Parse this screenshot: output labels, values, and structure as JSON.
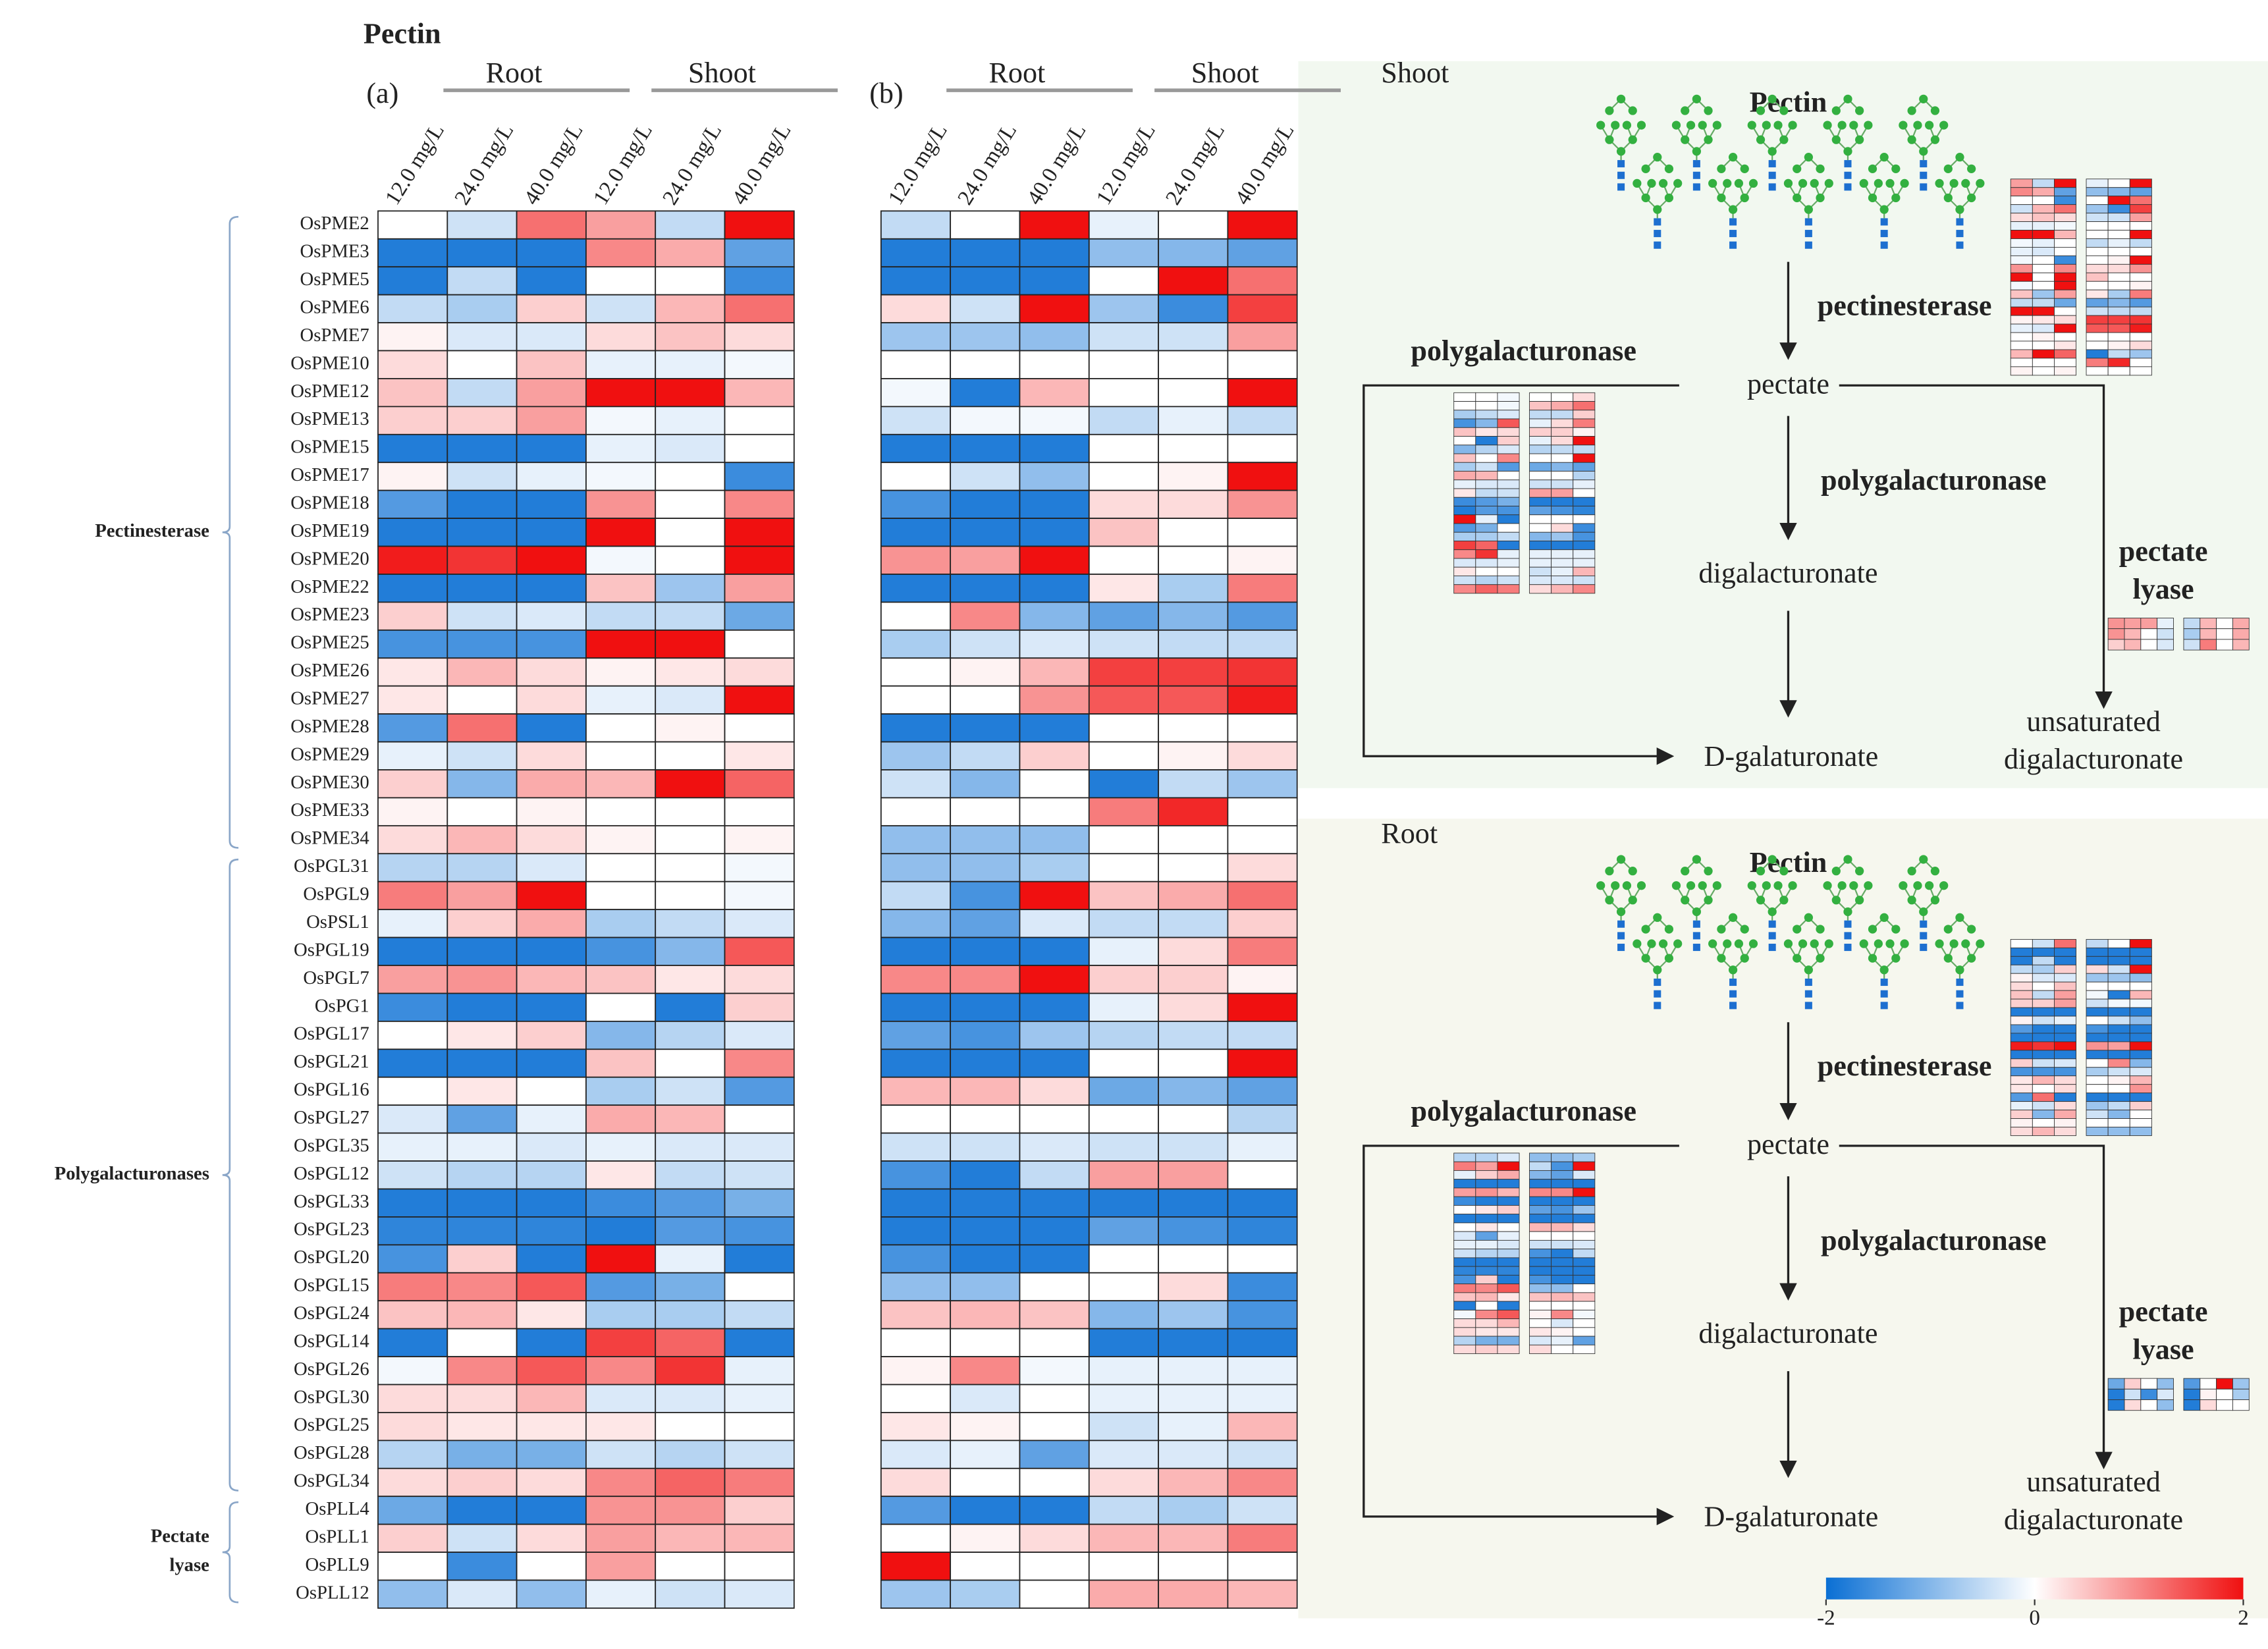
{
  "chart_data": {
    "type": "heatmap",
    "title": "Pectin",
    "column_groups": [
      "Root",
      "Shoot"
    ],
    "columns": [
      "12.0 mg/L",
      "24.0 mg/L",
      "40.0 mg/L",
      "12.0 mg/L",
      "24.0 mg/L",
      "40.0 mg/L"
    ],
    "row_groups": [
      {
        "label": [
          "Pectinesterase"
        ],
        "rows": [
          "OsPME2",
          "OsPME3",
          "OsPME5",
          "OsPME6",
          "OsPME7",
          "OsPME10",
          "OsPME12",
          "OsPME13",
          "OsPME15",
          "OsPME17",
          "OsPME18",
          "OsPME19",
          "OsPME20",
          "OsPME22",
          "OsPME23",
          "OsPME25",
          "OsPME26",
          "OsPME27",
          "OsPME28",
          "OsPME29",
          "OsPME30",
          "OsPME33",
          "OsPME34"
        ]
      },
      {
        "label": [
          "Polygalacturonases"
        ],
        "rows": [
          "OsPGL31",
          "OsPGL9",
          "OsPSL1",
          "OsPGL19",
          "OsPGL7",
          "OsPG1",
          "OsPGL17",
          "OsPGL21",
          "OsPGL16",
          "OsPGL27",
          "OsPGL35",
          "OsPGL12",
          "OsPGL33",
          "OsPGL23",
          "OsPGL20",
          "OsPGL15",
          "OsPGL24",
          "OsPGL14",
          "OsPGL26",
          "OsPGL30",
          "OsPGL25",
          "OsPGL28",
          "OsPGL34"
        ]
      },
      {
        "label": [
          "Pectate",
          "lyase"
        ],
        "rows": [
          "OsPLL4",
          "OsPLL1",
          "OsPLL9",
          "OsPLL12"
        ]
      }
    ],
    "panels": [
      {
        "label": "(a)",
        "values": [
          [
            0,
            -0.4,
            1.2,
            0.8,
            -0.5,
            2
          ],
          [
            -1.8,
            -1.8,
            -1.8,
            1,
            0.7,
            -1.3
          ],
          [
            -1.8,
            -0.5,
            -1.8,
            0,
            0,
            -1.6
          ],
          [
            -0.5,
            -0.7,
            0.4,
            -0.4,
            0.6,
            1.2
          ],
          [
            0.1,
            -0.3,
            -0.3,
            0.3,
            0.5,
            0.3
          ],
          [
            0.3,
            0,
            0.5,
            -0.2,
            -0.2,
            -0.1
          ],
          [
            0.5,
            -0.5,
            0.8,
            2,
            2,
            0.6
          ],
          [
            0.4,
            0.4,
            0.8,
            -0.1,
            -0.2,
            0
          ],
          [
            -1.8,
            -1.8,
            -1.8,
            -0.2,
            -0.3,
            0
          ],
          [
            0.1,
            -0.4,
            -0.2,
            -0.1,
            0,
            -1.6
          ],
          [
            -1.4,
            -1.8,
            -1.8,
            0.9,
            0,
            1
          ],
          [
            -1.8,
            -1.8,
            -1.8,
            2,
            0,
            2
          ],
          [
            1.9,
            1.7,
            2,
            -0.1,
            0,
            2
          ],
          [
            -1.8,
            -1.8,
            -1.8,
            0.5,
            -0.8,
            0.8
          ],
          [
            0.4,
            -0.4,
            -0.3,
            -0.5,
            -0.5,
            -1.2
          ],
          [
            -1.5,
            -1.5,
            -1.5,
            2,
            2,
            0
          ],
          [
            0.2,
            0.6,
            0.3,
            0.1,
            0.2,
            0.3
          ],
          [
            0.2,
            0,
            0.3,
            -0.2,
            -0.3,
            2
          ],
          [
            -1.4,
            1.2,
            -1.8,
            0,
            0.1,
            0
          ],
          [
            -0.2,
            -0.4,
            0.3,
            0,
            0,
            0.2
          ],
          [
            0.4,
            -1,
            0.7,
            0.6,
            2,
            1.3
          ],
          [
            0.1,
            0,
            0.1,
            0,
            0,
            0
          ],
          [
            0.3,
            0.6,
            0.3,
            0.1,
            0,
            0.1
          ],
          [
            -0.6,
            -0.6,
            -0.3,
            0,
            0,
            -0.1
          ],
          [
            1.1,
            0.8,
            2,
            0,
            0,
            -0.1
          ],
          [
            -0.2,
            0.4,
            0.7,
            -0.7,
            -0.5,
            -0.3
          ],
          [
            -1.8,
            -1.8,
            -1.8,
            -1.5,
            -1,
            1.4
          ],
          [
            0.8,
            0.9,
            0.6,
            0.5,
            0.2,
            0.3
          ],
          [
            -1.6,
            -1.8,
            -1.8,
            0,
            -1.8,
            0.4
          ],
          [
            0,
            0.2,
            0.4,
            -1,
            -0.6,
            -0.3
          ],
          [
            -1.8,
            -1.8,
            -1.8,
            0.5,
            0,
            1
          ],
          [
            0,
            0.2,
            0,
            -0.7,
            -0.4,
            -1.4
          ],
          [
            -0.3,
            -1.3,
            -0.2,
            0.7,
            0.6,
            0
          ],
          [
            -0.2,
            -0.2,
            -0.3,
            -0.2,
            -0.3,
            -0.3
          ],
          [
            -0.4,
            -0.6,
            -0.6,
            0.2,
            -0.5,
            -0.4
          ],
          [
            -1.8,
            -1.8,
            -1.8,
            -1.6,
            -1.4,
            -1.1
          ],
          [
            -1.7,
            -1.7,
            -1.7,
            -1.8,
            -1.4,
            -1.5
          ],
          [
            -1.5,
            0.4,
            -1.8,
            2,
            -0.2,
            -1.8
          ],
          [
            1.1,
            1,
            1.4,
            -1.4,
            -1.1,
            0
          ],
          [
            0.5,
            0.6,
            0.2,
            -0.7,
            -0.7,
            -0.5
          ],
          [
            -1.8,
            0,
            -1.8,
            1.6,
            1.3,
            -1.8
          ],
          [
            -0.1,
            1,
            1.4,
            1,
            1.7,
            -0.2
          ],
          [
            0.3,
            0.3,
            0.6,
            -0.3,
            -0.3,
            -0.2
          ],
          [
            0.3,
            0.2,
            0.2,
            0.2,
            0,
            0
          ],
          [
            -0.6,
            -1.1,
            -1.1,
            -0.4,
            -0.6,
            -0.4
          ],
          [
            0.3,
            0.4,
            0.3,
            1,
            1.3,
            1.1
          ],
          [
            -1.2,
            -1.8,
            -1.8,
            0.9,
            0.9,
            0.4
          ],
          [
            0.4,
            -0.4,
            0.3,
            0.8,
            0.6,
            0.6
          ],
          [
            0,
            -1.6,
            0,
            0.8,
            0,
            0
          ],
          [
            -0.9,
            -0.3,
            -0.9,
            -0.2,
            -0.4,
            -0.3
          ]
        ]
      },
      {
        "label": "(b)",
        "values": [
          [
            -0.5,
            0,
            2,
            -0.2,
            0,
            2
          ],
          [
            -1.8,
            -1.8,
            -1.8,
            -0.9,
            -1,
            -1.3
          ],
          [
            -1.8,
            -1.8,
            -1.8,
            0,
            2,
            1.2
          ],
          [
            0.3,
            -0.4,
            2,
            -0.8,
            -1.6,
            1.6
          ],
          [
            -0.8,
            -0.8,
            -0.9,
            -0.4,
            -0.4,
            0.8
          ],
          [
            0,
            0,
            0,
            0,
            0,
            0
          ],
          [
            -0.1,
            -1.8,
            0.6,
            0,
            0,
            2
          ],
          [
            -0.4,
            -0.1,
            -0.1,
            -0.5,
            -0.2,
            -0.5
          ],
          [
            -1.8,
            -1.8,
            -1.8,
            0,
            0,
            0
          ],
          [
            0,
            -0.4,
            -0.9,
            0,
            0.1,
            2
          ],
          [
            -1.5,
            -1.8,
            -1.8,
            0.3,
            0.3,
            0.9
          ],
          [
            -1.8,
            -1.8,
            -1.8,
            0.5,
            0,
            0
          ],
          [
            0.9,
            0.8,
            2,
            0,
            0,
            0.1
          ],
          [
            -1.8,
            -1.8,
            -1.8,
            0.2,
            -0.7,
            1.1
          ],
          [
            0,
            1,
            -1,
            -1.3,
            -1,
            -1.4
          ],
          [
            -0.7,
            -0.4,
            -0.3,
            -0.4,
            -0.5,
            -0.5
          ],
          [
            0,
            0.1,
            0.6,
            1.6,
            1.6,
            1.7
          ],
          [
            0,
            0,
            0.9,
            1.4,
            1.4,
            1.9
          ],
          [
            -1.8,
            -1.8,
            -1.8,
            0,
            0,
            0
          ],
          [
            -0.8,
            -0.5,
            0.4,
            0,
            0.1,
            0.3
          ],
          [
            -0.4,
            -1,
            0,
            -1.8,
            -0.5,
            -0.8
          ],
          [
            0,
            0,
            0,
            1.1,
            1.8,
            0
          ],
          [
            -0.9,
            -0.9,
            -0.9,
            0,
            0,
            0
          ],
          [
            -0.9,
            -0.9,
            -0.7,
            0,
            0,
            0.3
          ],
          [
            -0.5,
            -1.5,
            2,
            0.5,
            0.7,
            1.2
          ],
          [
            -1,
            -1.3,
            -0.3,
            -0.5,
            -0.5,
            0.4
          ],
          [
            -1.8,
            -1.8,
            -1.8,
            -0.2,
            0.3,
            1.1
          ],
          [
            1,
            1,
            2,
            0.4,
            0.4,
            0.1
          ],
          [
            -1.8,
            -1.8,
            -1.8,
            -0.2,
            0.3,
            2
          ],
          [
            -1.3,
            -1.5,
            -0.8,
            -0.6,
            -0.5,
            -0.5
          ],
          [
            -1.8,
            -1.8,
            -1.8,
            0,
            0,
            2
          ],
          [
            0.6,
            0.6,
            0.3,
            -1.2,
            -1,
            -1.3
          ],
          [
            0,
            0,
            0,
            0,
            0,
            -0.6
          ],
          [
            -0.4,
            -0.4,
            -0.3,
            -0.4,
            -0.4,
            -0.2
          ],
          [
            -1.5,
            -1.8,
            -0.5,
            0.8,
            0.8,
            0
          ],
          [
            -1.8,
            -1.8,
            -1.8,
            -1.8,
            -1.8,
            -1.8
          ],
          [
            -1.8,
            -1.8,
            -1.8,
            -1.3,
            -1.5,
            -1.7
          ],
          [
            -1.5,
            -1.8,
            -1.8,
            0,
            0,
            0
          ],
          [
            -0.9,
            -0.9,
            0,
            0,
            0.3,
            -1.6
          ],
          [
            0.5,
            0.6,
            0.5,
            -1,
            -0.8,
            -1.5
          ],
          [
            0,
            0,
            0,
            -1.8,
            -1.8,
            -1.8
          ],
          [
            0.1,
            1,
            -0.1,
            -0.2,
            -0.2,
            -0.2
          ],
          [
            0,
            -0.3,
            0,
            -0.2,
            -0.2,
            -0.2
          ],
          [
            0.2,
            0.1,
            0,
            -0.4,
            -0.2,
            0.6
          ],
          [
            -0.3,
            -0.2,
            -1.3,
            -0.3,
            -0.3,
            -0.4
          ],
          [
            0.3,
            0,
            0,
            0.3,
            0.6,
            1
          ],
          [
            -1.4,
            -1.8,
            -1.8,
            -0.5,
            -0.7,
            -0.4
          ],
          [
            0,
            0.1,
            0.3,
            0.6,
            0.6,
            1.1
          ],
          [
            2,
            0,
            0,
            0,
            0,
            0
          ],
          [
            -0.8,
            -0.7,
            0,
            0.7,
            0.7,
            0.6
          ]
        ]
      }
    ],
    "colorbar": {
      "range": [
        -2,
        2
      ],
      "ticks": [
        -2,
        0,
        2
      ],
      "colors": [
        "#0a6fd4",
        "#ffffff",
        "#f01010"
      ]
    }
  },
  "pathways": [
    {
      "tissue": "Shoot",
      "substrate": "Pectin",
      "enzyme1": "pectinesterase",
      "product1": "pectate",
      "enzyme2": "polygalacturonase",
      "enzyme3": "polygalacturonase",
      "intermediate": "digalacturonate",
      "product": "D-galaturonate",
      "enzyme4": [
        "pectate",
        "lyase"
      ],
      "product2": [
        "unsaturated",
        "digalacturonate"
      ]
    },
    {
      "tissue": "Root",
      "substrate": "Pectin",
      "enzyme1": "pectinesterase",
      "product1": "pectate",
      "enzyme2": "polygalacturonase",
      "enzyme3": "polygalacturonase",
      "intermediate": "digalacturonate",
      "product": "D-galaturonate",
      "enzyme4": [
        "pectate",
        "lyase"
      ],
      "product2": [
        "unsaturated",
        "digalacturonate"
      ]
    }
  ]
}
